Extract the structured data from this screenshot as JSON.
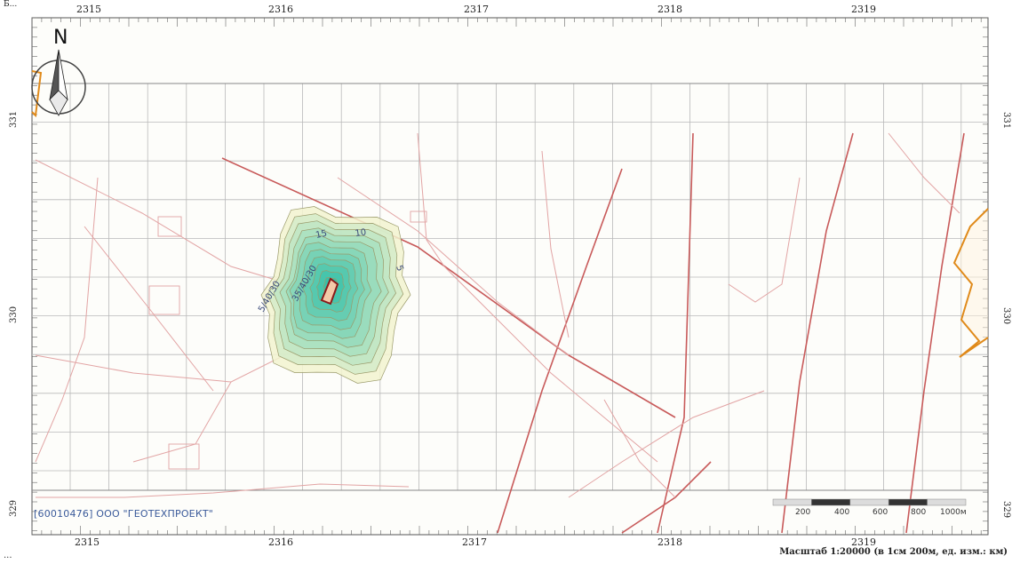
{
  "top_caption": "Б...",
  "bottom_caption": "...",
  "x_ticks": [
    "2315",
    "2316",
    "2317",
    "2318",
    "2319"
  ],
  "y_ticks": [
    "331",
    "330",
    "329"
  ],
  "north_label": "N",
  "organization": "[60010476] ООО \"ГЕОТЕХПРОЕКТ\"",
  "scale_bar": {
    "labels": [
      "200",
      "400",
      "600",
      "800",
      "1000м"
    ]
  },
  "scale_caption": "Масштаб 1:20000 (в 1см 200м, ед. изм.: км)",
  "contour_labels": [
    "15",
    "10",
    "5",
    "5/40/30",
    "35/40/30"
  ],
  "colors": {
    "grid": "#b9b9b9",
    "roads": "#c85a5a",
    "lines_light": "#e2a4a4",
    "site_boundary": "#e08a1a",
    "source": "#8a1a1a",
    "contour_outer": "#f2f3cf",
    "contour_inner": "#34c0a8"
  }
}
